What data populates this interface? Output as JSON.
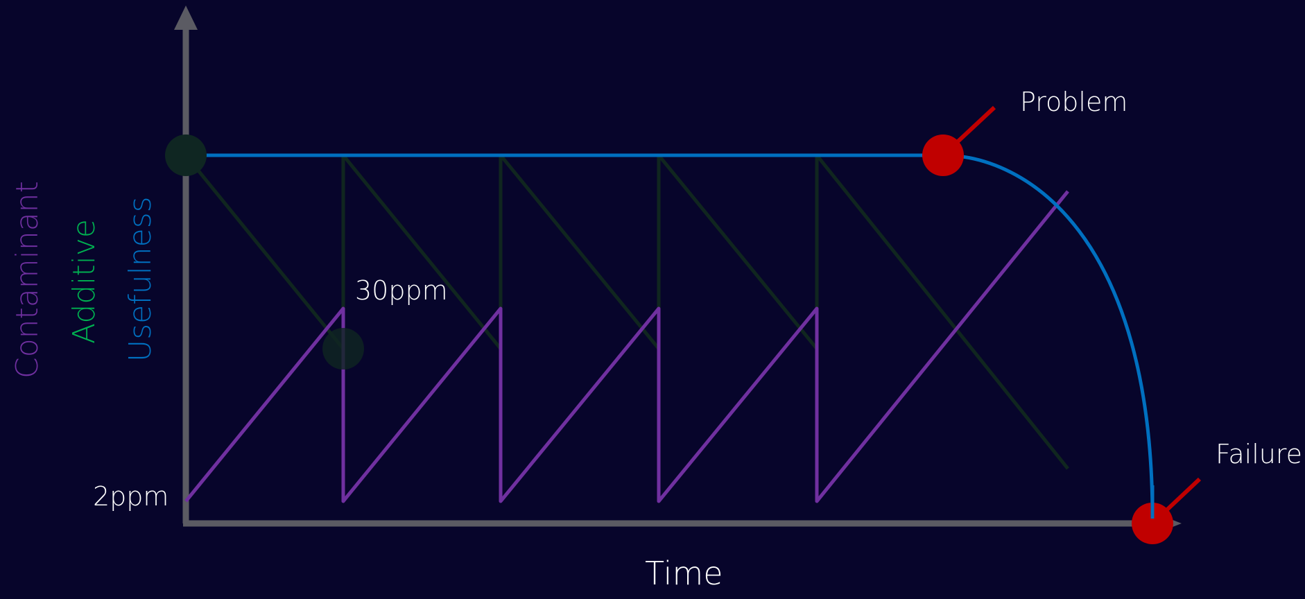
{
  "labels": {
    "problem": "Problem",
    "failure": "Failure",
    "ppm_high": "30ppm",
    "ppm_low": "2ppm",
    "x_axis": "Time",
    "y_contaminant": "Contaminant",
    "y_additive": "Additive",
    "y_usefulness": "Usefulness"
  },
  "colors": {
    "background": "#07052b",
    "axis": "#5b5b63",
    "contaminant": "#7030a0",
    "additive": "#00b050",
    "additive_line": "#10261f",
    "usefulness": "#0070c0",
    "marker": "#c00000",
    "text": "#ffffff"
  }
}
